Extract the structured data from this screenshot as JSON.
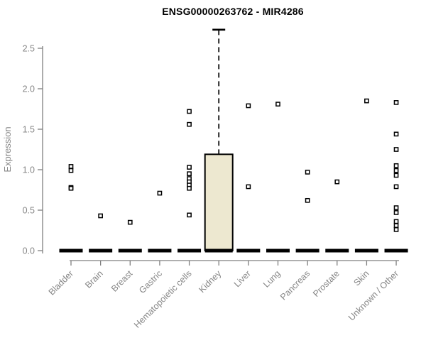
{
  "chart_data": {
    "type": "boxplot",
    "title": "ENSG00000263762 - MIR4286",
    "ylabel": "Expression",
    "ylim": [
      0,
      2.5
    ],
    "yticks": [
      0.0,
      0.5,
      1.0,
      1.5,
      2.0,
      2.5
    ],
    "grid": false,
    "categories": [
      "Bladder",
      "Brain",
      "Breast",
      "Gastric",
      "Hematopoietic cells",
      "Kidney",
      "Liver",
      "Lung",
      "Pancreas",
      "Prostate",
      "Skin",
      "Unknown / Other"
    ],
    "boxes": [
      {
        "category": "Bladder",
        "median": 0,
        "q1": 0,
        "q3": 0,
        "whisker_low": 0,
        "whisker_high": 0,
        "outliers": [
          1.04,
          0.99,
          0.78,
          0.77
        ]
      },
      {
        "category": "Brain",
        "median": 0,
        "q1": 0,
        "q3": 0,
        "whisker_low": 0,
        "whisker_high": 0,
        "outliers": [
          0.43
        ]
      },
      {
        "category": "Breast",
        "median": 0,
        "q1": 0,
        "q3": 0,
        "whisker_low": 0,
        "whisker_high": 0,
        "outliers": [
          0.35
        ]
      },
      {
        "category": "Gastric",
        "median": 0,
        "q1": 0,
        "q3": 0,
        "whisker_low": 0,
        "whisker_high": 0,
        "outliers": [
          0.71
        ]
      },
      {
        "category": "Hematopoietic cells",
        "median": 0,
        "q1": 0,
        "q3": 0,
        "whisker_low": 0,
        "whisker_high": 0,
        "outliers": [
          1.72,
          1.56,
          1.03,
          0.95,
          0.89,
          0.85,
          0.81,
          0.77,
          0.44
        ]
      },
      {
        "category": "Kidney",
        "median": 0,
        "q1": 0,
        "q3": 1.19,
        "whisker_low": 0,
        "whisker_high": 2.73,
        "outliers": []
      },
      {
        "category": "Liver",
        "median": 0,
        "q1": 0,
        "q3": 0,
        "whisker_low": 0,
        "whisker_high": 0,
        "outliers": [
          1.79,
          0.79
        ]
      },
      {
        "category": "Lung",
        "median": 0,
        "q1": 0,
        "q3": 0,
        "whisker_low": 0,
        "whisker_high": 0,
        "outliers": [
          1.81
        ]
      },
      {
        "category": "Pancreas",
        "median": 0,
        "q1": 0,
        "q3": 0,
        "whisker_low": 0,
        "whisker_high": 0,
        "outliers": [
          0.97,
          0.62
        ]
      },
      {
        "category": "Prostate",
        "median": 0,
        "q1": 0,
        "q3": 0,
        "whisker_low": 0,
        "whisker_high": 0,
        "outliers": [
          0.85
        ]
      },
      {
        "category": "Skin",
        "median": 0,
        "q1": 0,
        "q3": 0,
        "whisker_low": 0,
        "whisker_high": 0,
        "outliers": [
          1.85
        ]
      },
      {
        "category": "Unknown / Other",
        "median": 0,
        "q1": 0,
        "q3": 0,
        "whisker_low": 0,
        "whisker_high": 0,
        "outliers": [
          1.83,
          1.44,
          1.25,
          1.05,
          0.99,
          0.93,
          0.79,
          0.53,
          0.47,
          0.36,
          0.31,
          0.26
        ]
      }
    ],
    "colors": {
      "box_fill": "#ede8d0",
      "box_stroke": "#000000",
      "median_color": "#000000",
      "outlier_stroke": "#000000",
      "outlier_fill": "#ffffff",
      "axis_color": "#7f7f7f",
      "label_color": "#868686",
      "title_color": "#000000",
      "background": "#ffffff"
    }
  }
}
